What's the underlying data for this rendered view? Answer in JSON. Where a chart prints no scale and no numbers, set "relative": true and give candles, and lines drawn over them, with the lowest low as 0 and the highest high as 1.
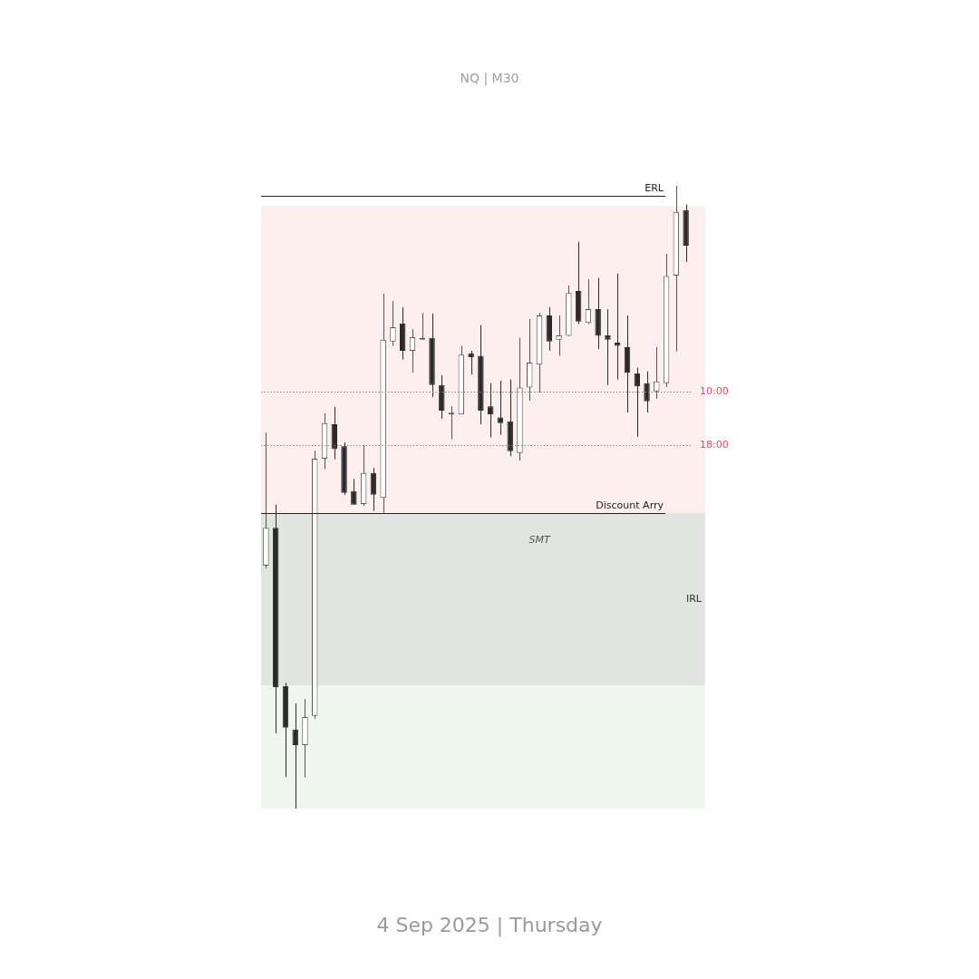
{
  "chart_data": {
    "type": "candlestick",
    "subtitle": "NQ | M30",
    "relative": true,
    "colors": [
      "#555555",
      "#2b2b2b",
      "#2b2b2b",
      "#2b2b2b",
      "#555555",
      "#555555",
      "#555555",
      "#2b2b2b",
      "#2b2b2b",
      "#2b2b2b",
      "#555555",
      "#2b2b2b",
      "#555555",
      "#555555",
      "#2b2b2b",
      "#555555",
      "#555555",
      "#2b2b2b",
      "#2b2b2b",
      "#555555",
      "#555555",
      "#2b2b2b",
      "#2b2b2b",
      "#2b2b2b",
      "#2b2b2b",
      "#2b2b2b",
      "#555555",
      "#555555",
      "#555555",
      "#2b2b2b",
      "#555555",
      "#555555",
      "#2b2b2b",
      "#555555",
      "#2b2b2b",
      "#2b2b2b",
      "#2b2b2b",
      "#2b2b2b",
      "#2b2b2b",
      "#2b2b2b",
      "#555555",
      "#555555",
      "#555555",
      "#2b2b2b"
    ],
    "categories": [
      null,
      null,
      null,
      null,
      null,
      null,
      null,
      null,
      null,
      null,
      null,
      null,
      null,
      null,
      null,
      null,
      null,
      null,
      null,
      null,
      null,
      null,
      null,
      null,
      null,
      null,
      null,
      null,
      null,
      null,
      null,
      null,
      null,
      null,
      null,
      null,
      null,
      null,
      null,
      null,
      null,
      null,
      null,
      null
    ],
    "ohlc": [
      [
        0.39,
        0.604,
        0.386,
        0.451
      ],
      [
        0.451,
        0.488,
        0.121,
        0.195
      ],
      [
        0.197,
        0.202,
        0.051,
        0.13
      ],
      [
        0.127,
        0.169,
        0.0,
        0.102
      ],
      [
        0.102,
        0.176,
        0.05,
        0.147
      ],
      [
        0.149,
        0.575,
        0.144,
        0.562
      ],
      [
        0.562,
        0.635,
        0.545,
        0.619
      ],
      [
        0.617,
        0.645,
        0.561,
        0.577
      ],
      [
        0.582,
        0.588,
        0.504,
        0.507
      ],
      [
        0.51,
        0.529,
        0.488,
        0.488
      ],
      [
        0.489,
        0.584,
        0.486,
        0.539
      ],
      [
        0.539,
        0.547,
        0.478,
        0.504
      ],
      [
        0.499,
        0.827,
        0.475,
        0.753
      ],
      [
        0.75,
        0.815,
        0.743,
        0.773
      ],
      [
        0.779,
        0.805,
        0.721,
        0.735
      ],
      [
        0.735,
        0.77,
        0.7,
        0.757
      ],
      [
        0.753,
        0.796,
        0.753,
        0.756
      ],
      [
        0.756,
        0.795,
        0.661,
        0.68
      ],
      [
        0.68,
        0.696,
        0.626,
        0.639
      ],
      [
        0.633,
        0.646,
        0.593,
        0.633
      ],
      [
        0.633,
        0.743,
        0.633,
        0.729
      ],
      [
        0.731,
        0.735,
        0.697,
        0.725
      ],
      [
        0.727,
        0.776,
        0.617,
        0.639
      ],
      [
        0.646,
        0.683,
        0.596,
        0.633
      ],
      [
        0.628,
        0.687,
        0.6,
        0.619
      ],
      [
        0.622,
        0.689,
        0.566,
        0.574
      ],
      [
        0.571,
        0.756,
        0.559,
        0.676
      ],
      [
        0.676,
        0.786,
        0.655,
        0.716
      ],
      [
        0.713,
        0.796,
        0.668,
        0.792
      ],
      [
        0.792,
        0.805,
        0.735,
        0.75
      ],
      [
        0.753,
        0.792,
        0.727,
        0.76
      ],
      [
        0.759,
        0.84,
        0.759,
        0.828
      ],
      [
        0.831,
        0.91,
        0.778,
        0.782
      ],
      [
        0.78,
        0.85,
        0.778,
        0.802
      ],
      [
        0.802,
        0.852,
        0.738,
        0.759
      ],
      [
        0.76,
        0.802,
        0.68,
        0.753
      ],
      [
        0.748,
        0.859,
        0.689,
        0.743
      ],
      [
        0.741,
        0.792,
        0.636,
        0.7
      ],
      [
        0.699,
        0.708,
        0.597,
        0.678
      ],
      [
        0.683,
        0.702,
        0.636,
        0.654
      ],
      [
        0.67,
        0.741,
        0.658,
        0.686
      ],
      [
        0.683,
        0.891,
        0.677,
        0.855
      ],
      [
        0.856,
        1.0,
        0.734,
        0.958
      ],
      [
        0.961,
        0.97,
        0.878,
        0.904
      ]
    ],
    "ref_lines": [
      {
        "axis": "y",
        "value": 0.984,
        "label": "ERL",
        "color": "#222222",
        "line_style": "solid"
      },
      {
        "axis": "y",
        "value": 0.475,
        "label": "Discount Arry",
        "color": "#222222",
        "line_style": "solid"
      },
      {
        "axis": "y",
        "value": 0.67,
        "color": "#888888",
        "line_style": "dotted"
      },
      {
        "axis": "y",
        "value": 0.584,
        "color": "#888888",
        "line_style": "dotted"
      }
    ],
    "bands": [
      {
        "axis": "y",
        "from": 0.475,
        "to": 0.968,
        "color": "#fde8e8"
      },
      {
        "axis": "y",
        "from": 0.0,
        "to": 0.475,
        "color": "#e8f3e8"
      },
      {
        "axis": "y",
        "from": 0.198,
        "to": 0.475,
        "label": "IRL",
        "color": "#dcdcdc"
      }
    ],
    "annotations": [
      "SMT",
      "4 Sep 2025 | Thursday",
      "10:00",
      "18:00"
    ]
  }
}
